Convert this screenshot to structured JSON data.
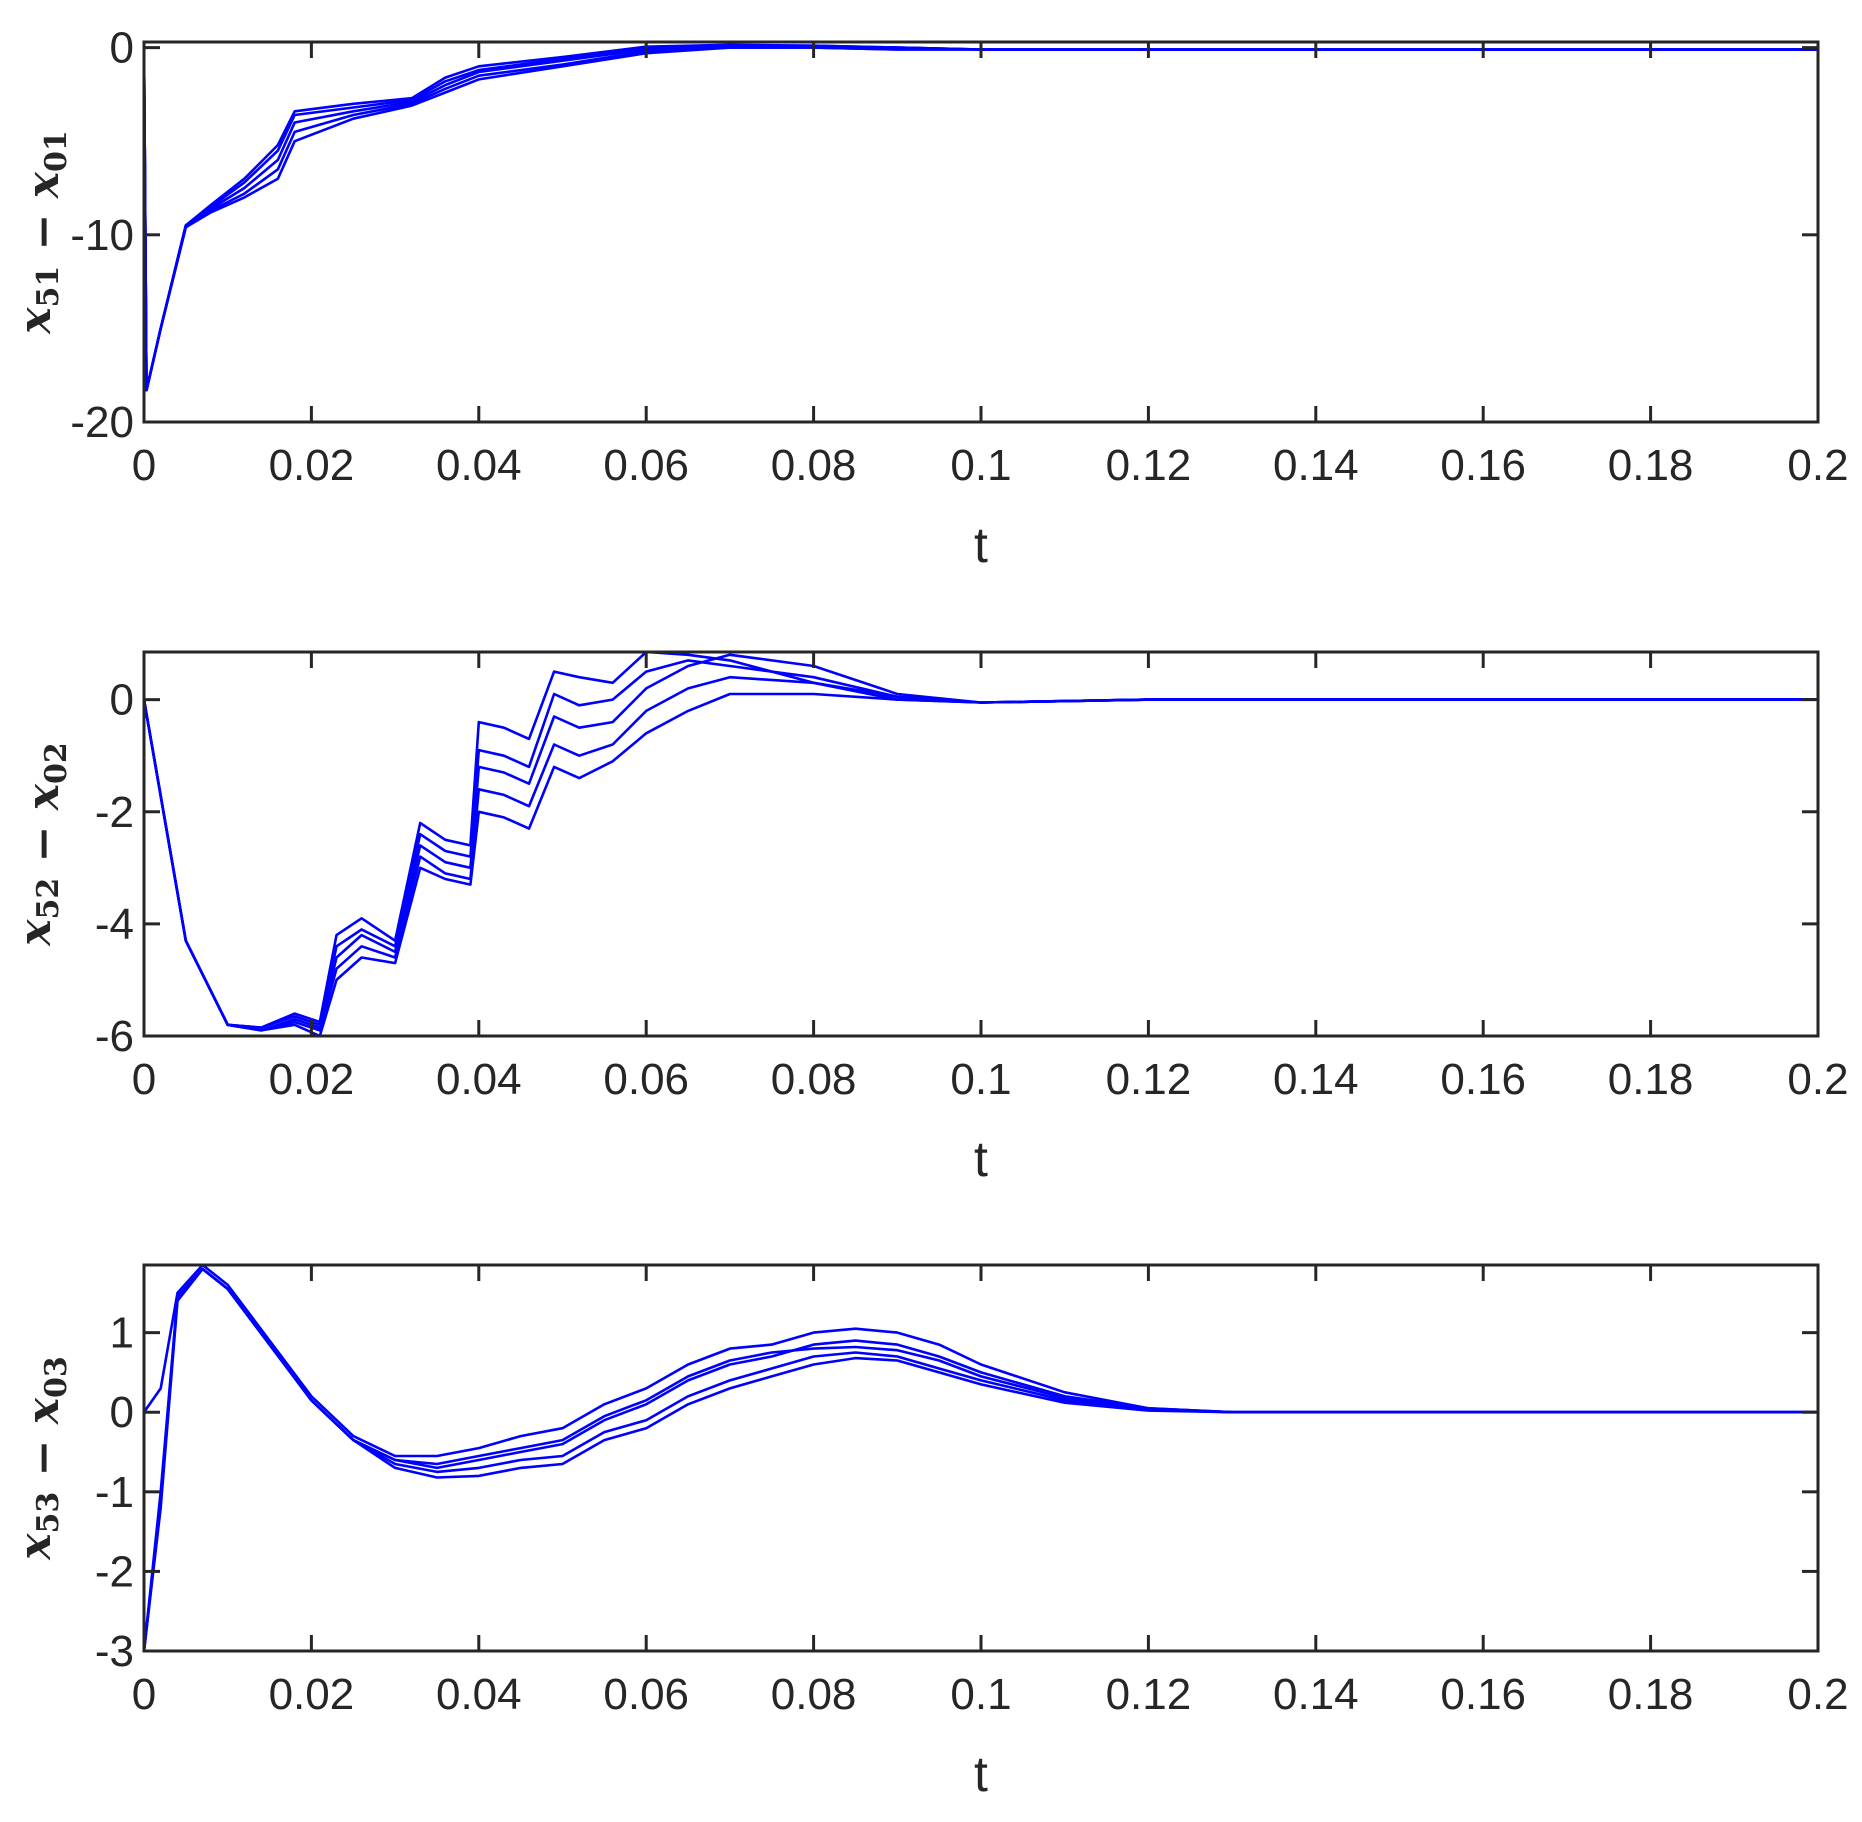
{
  "chart_data": [
    {
      "type": "line",
      "xlabel": "t",
      "ylabel": {
        "main": "x",
        "sub1": "51",
        "op": " − ",
        "main2": "x",
        "sub2": "01"
      },
      "xlim": [
        0,
        0.2
      ],
      "ylim": [
        -20,
        0.3
      ],
      "xticks": [
        0,
        0.02,
        0.04,
        0.06,
        0.08,
        0.1,
        0.12,
        0.14,
        0.16,
        0.18,
        0.2
      ],
      "xtick_labels": [
        "0",
        "0.02",
        "0.04",
        "0.06",
        "0.08",
        "0.1",
        "0.12",
        "0.14",
        "0.16",
        "0.18",
        "0.2"
      ],
      "yticks": [
        -20,
        -10,
        0
      ],
      "ytick_labels": [
        "-20",
        "-10",
        "0"
      ],
      "color": "#0000ff",
      "series": [
        {
          "x": [
            0,
            0.0003,
            0.002,
            0.005,
            0.008,
            0.012,
            0.016,
            0.018,
            0.025,
            0.032,
            0.036,
            0.04,
            0.05,
            0.06,
            0.07,
            0.08,
            0.09,
            0.1,
            0.2
          ],
          "y": [
            0,
            -18.3,
            -15,
            -9.5,
            -8.5,
            -7.2,
            -5.5,
            -3.6,
            -3.2,
            -2.8,
            -1.8,
            -1.2,
            -0.6,
            0,
            0.1,
            0.1,
            0,
            -0.1,
            -0.1
          ]
        },
        {
          "x": [
            0,
            0.0003,
            0.002,
            0.005,
            0.008,
            0.012,
            0.016,
            0.018,
            0.025,
            0.032,
            0.036,
            0.04,
            0.05,
            0.06,
            0.07,
            0.08,
            0.09,
            0.1,
            0.2
          ],
          "y": [
            0,
            -18.3,
            -15,
            -9.5,
            -8.7,
            -7.8,
            -6.5,
            -4.5,
            -3.6,
            -3.0,
            -2.2,
            -1.5,
            -0.9,
            -0.2,
            0,
            0,
            -0.1,
            -0.1,
            -0.1
          ]
        },
        {
          "x": [
            0,
            0.0003,
            0.002,
            0.005,
            0.008,
            0.012,
            0.016,
            0.018,
            0.025,
            0.032,
            0.036,
            0.04,
            0.05,
            0.06,
            0.07,
            0.08,
            0.09,
            0.1,
            0.2
          ],
          "y": [
            0,
            -18.3,
            -15,
            -9.6,
            -8.6,
            -7.5,
            -6.0,
            -4.0,
            -3.4,
            -2.9,
            -2.0,
            -1.3,
            -0.7,
            -0.1,
            0.1,
            0.05,
            0,
            -0.1,
            -0.1
          ]
        },
        {
          "x": [
            0,
            0.0003,
            0.002,
            0.005,
            0.008,
            0.012,
            0.016,
            0.018,
            0.025,
            0.032,
            0.036,
            0.04,
            0.05,
            0.06,
            0.07,
            0.08,
            0.09,
            0.1,
            0.2
          ],
          "y": [
            0,
            -18.3,
            -15,
            -9.6,
            -8.8,
            -8.0,
            -7.0,
            -5.0,
            -3.8,
            -3.1,
            -2.4,
            -1.7,
            -1.0,
            -0.3,
            0,
            0,
            -0.1,
            -0.1,
            -0.1
          ]
        },
        {
          "x": [
            0,
            0.0003,
            0.002,
            0.005,
            0.008,
            0.012,
            0.016,
            0.018,
            0.025,
            0.032,
            0.036,
            0.04,
            0.05,
            0.06,
            0.07,
            0.08,
            0.09,
            0.1,
            0.2
          ],
          "y": [
            0,
            -18.3,
            -15,
            -9.5,
            -8.4,
            -7.0,
            -5.2,
            -3.4,
            -3.0,
            -2.7,
            -1.6,
            -1.0,
            -0.5,
            0.05,
            0.15,
            0.1,
            0,
            -0.1,
            -0.1
          ]
        }
      ]
    },
    {
      "type": "line",
      "xlabel": "t",
      "ylabel": {
        "main": "x",
        "sub1": "52",
        "op": " − ",
        "main2": "x",
        "sub2": "02"
      },
      "xlim": [
        0,
        0.2
      ],
      "ylim": [
        -6,
        0.85
      ],
      "xticks": [
        0,
        0.02,
        0.04,
        0.06,
        0.08,
        0.1,
        0.12,
        0.14,
        0.16,
        0.18,
        0.2
      ],
      "xtick_labels": [
        "0",
        "0.02",
        "0.04",
        "0.06",
        "0.08",
        "0.1",
        "0.12",
        "0.14",
        "0.16",
        "0.18",
        "0.2"
      ],
      "yticks": [
        -6,
        -4,
        -2,
        0
      ],
      "ytick_labels": [
        "-6",
        "-4",
        "-2",
        "0"
      ],
      "color": "#0000ff",
      "series": [
        {
          "x": [
            0,
            0.005,
            0.01,
            0.014,
            0.018,
            0.021,
            0.023,
            0.026,
            0.03,
            0.033,
            0.036,
            0.039,
            0.04,
            0.043,
            0.046,
            0.049,
            0.052,
            0.056,
            0.06,
            0.065,
            0.07,
            0.08,
            0.09,
            0.1,
            0.12,
            0.2
          ],
          "y": [
            0,
            -4.3,
            -5.8,
            -5.85,
            -5.6,
            -5.75,
            -4.2,
            -3.9,
            -4.3,
            -2.2,
            -2.5,
            -2.6,
            -0.4,
            -0.5,
            -0.7,
            0.5,
            0.4,
            0.3,
            0.85,
            0.8,
            0.7,
            0.3,
            0,
            -0.05,
            0,
            0
          ]
        },
        {
          "x": [
            0,
            0.005,
            0.01,
            0.014,
            0.018,
            0.021,
            0.023,
            0.026,
            0.03,
            0.033,
            0.036,
            0.039,
            0.04,
            0.043,
            0.046,
            0.049,
            0.052,
            0.056,
            0.06,
            0.065,
            0.07,
            0.08,
            0.09,
            0.1,
            0.12,
            0.2
          ],
          "y": [
            0,
            -4.3,
            -5.8,
            -5.9,
            -5.7,
            -5.85,
            -4.6,
            -4.2,
            -4.5,
            -2.6,
            -2.9,
            -3.0,
            -1.2,
            -1.3,
            -1.5,
            -0.3,
            -0.5,
            -0.4,
            0.2,
            0.6,
            0.8,
            0.6,
            0.1,
            -0.05,
            0,
            0
          ]
        },
        {
          "x": [
            0,
            0.005,
            0.01,
            0.014,
            0.018,
            0.021,
            0.023,
            0.026,
            0.03,
            0.033,
            0.036,
            0.039,
            0.04,
            0.043,
            0.046,
            0.049,
            0.052,
            0.056,
            0.06,
            0.065,
            0.07,
            0.08,
            0.09,
            0.1,
            0.12,
            0.2
          ],
          "y": [
            0,
            -4.3,
            -5.8,
            -5.9,
            -5.75,
            -5.9,
            -4.8,
            -4.4,
            -4.6,
            -2.8,
            -3.1,
            -3.2,
            -1.6,
            -1.7,
            -1.9,
            -0.8,
            -1.0,
            -0.8,
            -0.2,
            0.2,
            0.4,
            0.3,
            0.05,
            -0.05,
            0,
            0
          ]
        },
        {
          "x": [
            0,
            0.005,
            0.01,
            0.014,
            0.018,
            0.021,
            0.023,
            0.026,
            0.03,
            0.033,
            0.036,
            0.039,
            0.04,
            0.043,
            0.046,
            0.049,
            0.052,
            0.056,
            0.06,
            0.065,
            0.07,
            0.08,
            0.09,
            0.1,
            0.12,
            0.2
          ],
          "y": [
            0,
            -4.3,
            -5.8,
            -5.9,
            -5.8,
            -6.0,
            -5.0,
            -4.6,
            -4.7,
            -3.0,
            -3.2,
            -3.3,
            -2.0,
            -2.1,
            -2.3,
            -1.2,
            -1.4,
            -1.1,
            -0.6,
            -0.2,
            0.1,
            0.1,
            0,
            -0.05,
            0,
            0
          ]
        },
        {
          "x": [
            0,
            0.005,
            0.01,
            0.014,
            0.018,
            0.021,
            0.023,
            0.026,
            0.03,
            0.033,
            0.036,
            0.039,
            0.04,
            0.043,
            0.046,
            0.049,
            0.052,
            0.056,
            0.06,
            0.065,
            0.07,
            0.08,
            0.09,
            0.1,
            0.12,
            0.2
          ],
          "y": [
            0,
            -4.3,
            -5.8,
            -5.85,
            -5.65,
            -5.8,
            -4.4,
            -4.1,
            -4.4,
            -2.4,
            -2.7,
            -2.8,
            -0.9,
            -1.0,
            -1.2,
            0.1,
            -0.1,
            0.0,
            0.5,
            0.7,
            0.6,
            0.4,
            0.05,
            -0.05,
            0,
            0
          ]
        }
      ]
    },
    {
      "type": "line",
      "xlabel": "t",
      "ylabel": {
        "main": "x",
        "sub1": "53",
        "op": " − ",
        "main2": "x",
        "sub2": "03"
      },
      "xlim": [
        0,
        0.2
      ],
      "ylim": [
        -3,
        1.85
      ],
      "xticks": [
        0,
        0.02,
        0.04,
        0.06,
        0.08,
        0.1,
        0.12,
        0.14,
        0.16,
        0.18,
        0.2
      ],
      "xtick_labels": [
        "0",
        "0.02",
        "0.04",
        "0.06",
        "0.08",
        "0.1",
        "0.12",
        "0.14",
        "0.16",
        "0.18",
        "0.2"
      ],
      "yticks": [
        -3,
        -2,
        -1,
        0,
        1
      ],
      "ytick_labels": [
        "-3",
        "-2",
        "-1",
        "0",
        "1"
      ],
      "color": "#0000ff",
      "series": [
        {
          "x": [
            0,
            0.002,
            0.004,
            0.007,
            0.01,
            0.015,
            0.02,
            0.025,
            0.03,
            0.035,
            0.04,
            0.045,
            0.05,
            0.055,
            0.06,
            0.065,
            0.07,
            0.075,
            0.08,
            0.085,
            0.09,
            0.095,
            0.1,
            0.11,
            0.12,
            0.13,
            0.2
          ],
          "y": [
            0,
            0.3,
            1.5,
            1.85,
            1.6,
            0.9,
            0.2,
            -0.3,
            -0.55,
            -0.55,
            -0.45,
            -0.3,
            -0.2,
            0.1,
            0.3,
            0.6,
            0.8,
            0.85,
            1.0,
            1.05,
            1.0,
            0.85,
            0.6,
            0.25,
            0.05,
            0,
            0
          ]
        },
        {
          "x": [
            0,
            0.002,
            0.004,
            0.007,
            0.01,
            0.015,
            0.02,
            0.025,
            0.03,
            0.035,
            0.04,
            0.045,
            0.05,
            0.055,
            0.06,
            0.065,
            0.07,
            0.075,
            0.08,
            0.085,
            0.09,
            0.095,
            0.1,
            0.11,
            0.12,
            0.13,
            0.2
          ],
          "y": [
            -3,
            -1.2,
            1.4,
            1.8,
            1.55,
            0.85,
            0.15,
            -0.35,
            -0.6,
            -0.7,
            -0.6,
            -0.5,
            -0.4,
            -0.1,
            0.1,
            0.4,
            0.6,
            0.7,
            0.85,
            0.9,
            0.85,
            0.7,
            0.5,
            0.2,
            0.05,
            0,
            0
          ]
        },
        {
          "x": [
            0,
            0.002,
            0.004,
            0.007,
            0.01,
            0.015,
            0.02,
            0.025,
            0.03,
            0.035,
            0.04,
            0.045,
            0.05,
            0.055,
            0.06,
            0.065,
            0.07,
            0.075,
            0.08,
            0.085,
            0.09,
            0.095,
            0.1,
            0.11,
            0.12,
            0.13,
            0.2
          ],
          "y": [
            -3,
            -1.1,
            1.45,
            1.8,
            1.55,
            0.85,
            0.15,
            -0.35,
            -0.65,
            -0.75,
            -0.7,
            -0.6,
            -0.55,
            -0.25,
            -0.1,
            0.2,
            0.4,
            0.55,
            0.7,
            0.75,
            0.7,
            0.55,
            0.4,
            0.15,
            0.03,
            0,
            0
          ]
        },
        {
          "x": [
            0,
            0.002,
            0.004,
            0.007,
            0.01,
            0.015,
            0.02,
            0.025,
            0.03,
            0.035,
            0.04,
            0.045,
            0.05,
            0.055,
            0.06,
            0.065,
            0.07,
            0.075,
            0.08,
            0.085,
            0.09,
            0.095,
            0.1,
            0.11,
            0.12,
            0.13,
            0.2
          ],
          "y": [
            -3,
            -1.0,
            1.45,
            1.8,
            1.55,
            0.85,
            0.15,
            -0.35,
            -0.7,
            -0.82,
            -0.8,
            -0.7,
            -0.65,
            -0.35,
            -0.2,
            0.1,
            0.3,
            0.45,
            0.6,
            0.68,
            0.65,
            0.5,
            0.35,
            0.12,
            0.02,
            0,
            0
          ]
        },
        {
          "x": [
            0,
            0.002,
            0.004,
            0.007,
            0.01,
            0.015,
            0.02,
            0.025,
            0.03,
            0.035,
            0.04,
            0.045,
            0.05,
            0.055,
            0.06,
            0.065,
            0.07,
            0.075,
            0.08,
            0.085,
            0.09,
            0.095,
            0.1,
            0.11,
            0.12,
            0.13,
            0.2
          ],
          "y": [
            -3,
            -1.15,
            1.45,
            1.8,
            1.55,
            0.85,
            0.15,
            -0.35,
            -0.6,
            -0.65,
            -0.55,
            -0.45,
            -0.35,
            -0.05,
            0.15,
            0.45,
            0.65,
            0.75,
            0.8,
            0.82,
            0.78,
            0.65,
            0.45,
            0.18,
            0.04,
            0,
            0
          ]
        }
      ]
    }
  ]
}
